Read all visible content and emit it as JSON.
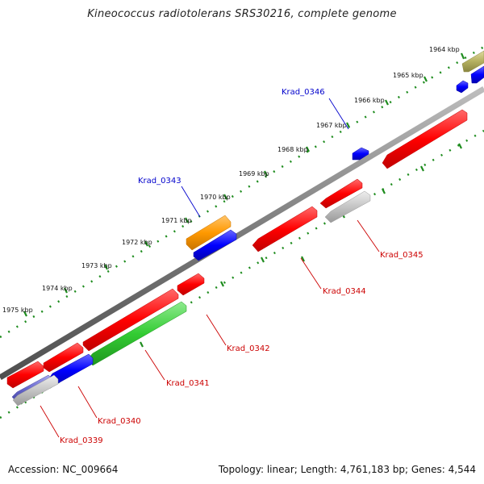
{
  "title": "Kineococcus radiotolerans SRS30216, complete genome",
  "footer": {
    "accession": "Accession: NC_009664",
    "topology": "Topology: linear; Length: 4,761,183 bp; Genes: 4,544"
  },
  "colors": {
    "backbone": "#7a7a7a",
    "ticks": "#1e8c1e",
    "label_red": "#cc0000",
    "label_blue": "#0000cc",
    "red": "#ff0000",
    "blue": "#0000ff",
    "green": "#33cc33",
    "orange": "#ff9900",
    "olive": "#b5b060",
    "gray": "#bbbbbb",
    "slateblue": "#6666cc"
  },
  "kbp_labels": [
    "1964 kbp",
    "1965 kbp",
    "1966 kbp",
    "1967 kbp",
    "1968 kbp",
    "1969 kbp",
    "1970 kbp",
    "1971 kbp",
    "1972 kbp",
    "1973 kbp",
    "1974 kbp",
    "1975 kbp"
  ],
  "gene_labels": {
    "krad_0346": "Krad_0346",
    "krad_0343": "Krad_0343",
    "krad_0345": "Krad_0345",
    "krad_0344": "Krad_0344",
    "krad_0342": "Krad_0342",
    "krad_0341": "Krad_0341",
    "krad_0340": "Krad_0340",
    "krad_0339": "Krad_0339"
  }
}
